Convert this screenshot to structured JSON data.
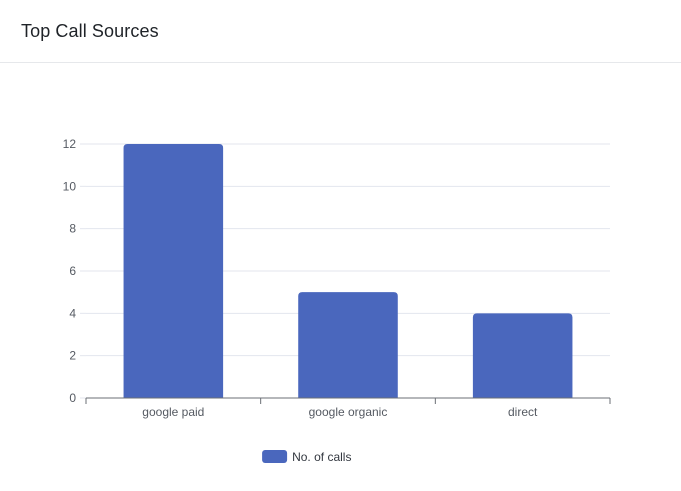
{
  "card": {
    "title": "Top Call Sources"
  },
  "chart_data": {
    "type": "bar",
    "categories": [
      "google paid",
      "google organic",
      "direct"
    ],
    "series": [
      {
        "name": "No. of calls",
        "values": [
          12,
          5,
          4
        ],
        "color": "#4a67bd"
      }
    ],
    "ylim": [
      0,
      12
    ],
    "yticks": [
      0,
      2,
      4,
      6,
      8,
      10,
      12
    ],
    "grid": true,
    "legend_position": "bottom-center",
    "colors": {
      "bar": "#4a67bd",
      "grid": "#e3e6ee",
      "axis": "#6b6f76",
      "text": "#555a62"
    }
  }
}
